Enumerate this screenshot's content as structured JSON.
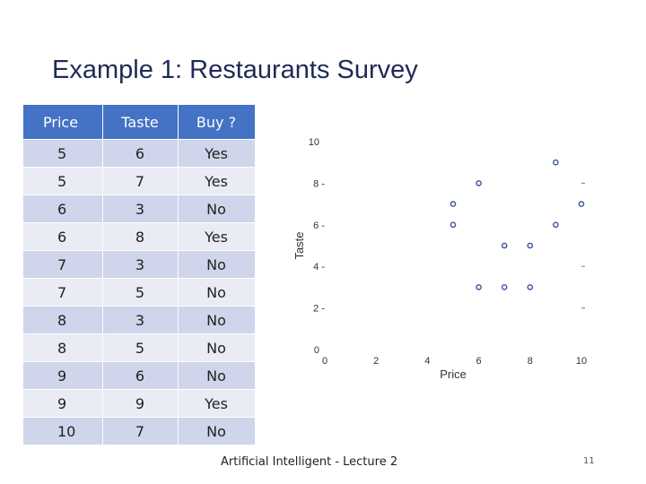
{
  "slide": {
    "title": "Example 1: Restaurants Survey",
    "footer": "Artificial Intelligent - Lecture 2",
    "page_number": "11"
  },
  "table": {
    "headers": [
      "Price",
      "Taste",
      "Buy ?"
    ],
    "rows": [
      [
        "5",
        "6",
        "Yes"
      ],
      [
        "5",
        "7",
        "Yes"
      ],
      [
        "6",
        "3",
        "No"
      ],
      [
        "6",
        "8",
        "Yes"
      ],
      [
        "7",
        "3",
        "No"
      ],
      [
        "7",
        "5",
        "No"
      ],
      [
        "8",
        "3",
        "No"
      ],
      [
        "8",
        "5",
        "No"
      ],
      [
        "9",
        "6",
        "No"
      ],
      [
        "9",
        "9",
        "Yes"
      ],
      [
        "10",
        "7",
        "No"
      ]
    ],
    "colors": {
      "header": "#4472c4",
      "row_odd": "#cfd5ea",
      "row_even": "#e9ebf5"
    }
  },
  "chart_data": {
    "type": "scatter",
    "xlabel": "Price",
    "ylabel": "Taste",
    "xlim": [
      0,
      10
    ],
    "ylim": [
      0,
      10
    ],
    "x_ticks": [
      "0",
      "2",
      "4",
      "6",
      "8",
      "10"
    ],
    "y_ticks": [
      "0",
      "2",
      "4",
      "6",
      "8",
      "10"
    ],
    "grid": false,
    "series": [
      {
        "color": "#3a4fa0",
        "points": [
          {
            "x": 5,
            "y": 6
          },
          {
            "x": 5,
            "y": 7
          },
          {
            "x": 6,
            "y": 3
          },
          {
            "x": 6,
            "y": 8
          },
          {
            "x": 7,
            "y": 3
          },
          {
            "x": 7,
            "y": 5
          },
          {
            "x": 8,
            "y": 3
          },
          {
            "x": 8,
            "y": 5
          },
          {
            "x": 9,
            "y": 6
          },
          {
            "x": 9,
            "y": 9
          },
          {
            "x": 10,
            "y": 7
          }
        ]
      }
    ]
  }
}
